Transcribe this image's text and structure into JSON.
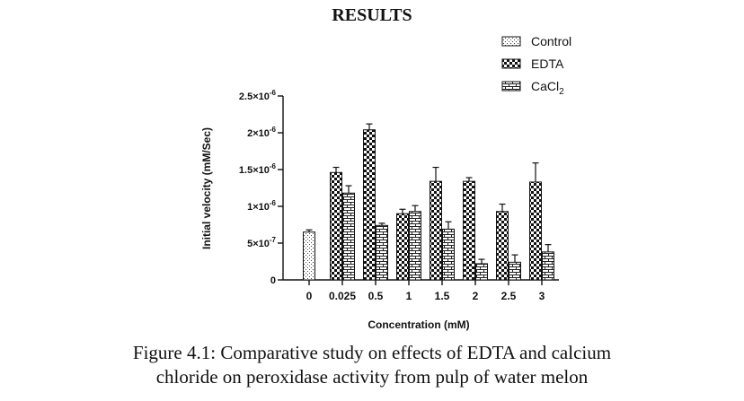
{
  "page": {
    "heading": "RESULTS",
    "caption_line1": "Figure 4.1: Comparative study on effects of EDTA and calcium",
    "caption_line2": "chloride on peroxidase activity from pulp of water melon"
  },
  "chart_data": {
    "type": "bar",
    "title": "",
    "xlabel": "Concentration (mM)",
    "ylabel": "Initial velocity (mM/Sec)",
    "categories": [
      "0",
      "0.025",
      "0.5",
      "1",
      "1.5",
      "2",
      "2.5",
      "3"
    ],
    "ylim": [
      0,
      2.5e-06
    ],
    "yticks": [
      {
        "value": 0,
        "label": "0",
        "exp": ""
      },
      {
        "value": 5e-07,
        "label": "5×10",
        "exp": "-7"
      },
      {
        "value": 1e-06,
        "label": "1×10",
        "exp": "-6"
      },
      {
        "value": 1.5e-06,
        "label": "1.5×10",
        "exp": "-6"
      },
      {
        "value": 2e-06,
        "label": "2×10",
        "exp": "-6"
      },
      {
        "value": 2.5e-06,
        "label": "2.5×10",
        "exp": "-6"
      }
    ],
    "legend": {
      "position": "top-right",
      "entries": [
        {
          "name": "Control",
          "pattern": "dots"
        },
        {
          "name": "EDTA",
          "pattern": "checker"
        },
        {
          "name": "CaCl",
          "sub": "2",
          "pattern": "brick"
        }
      ]
    },
    "series": [
      {
        "name": "Control",
        "pattern": "dots",
        "values": [
          6.5e-07,
          null,
          null,
          null,
          null,
          null,
          null,
          null
        ],
        "errors": [
          3e-08,
          null,
          null,
          null,
          null,
          null,
          null,
          null
        ]
      },
      {
        "name": "EDTA",
        "pattern": "checker",
        "values": [
          null,
          1.46e-06,
          2.04e-06,
          9e-07,
          1.34e-06,
          1.34e-06,
          9.3e-07,
          1.33e-06
        ],
        "errors": [
          null,
          7e-08,
          8e-08,
          6e-08,
          1.9e-07,
          5e-08,
          1e-07,
          2.6e-07
        ]
      },
      {
        "name": "CaCl2",
        "pattern": "brick",
        "values": [
          null,
          1.18e-06,
          7.4e-07,
          9.3e-07,
          6.9e-07,
          2.2e-07,
          2.4e-07,
          3.8e-07
        ],
        "errors": [
          null,
          1e-07,
          3e-08,
          8e-08,
          1e-07,
          6e-08,
          1e-07,
          1e-07
        ]
      }
    ]
  }
}
